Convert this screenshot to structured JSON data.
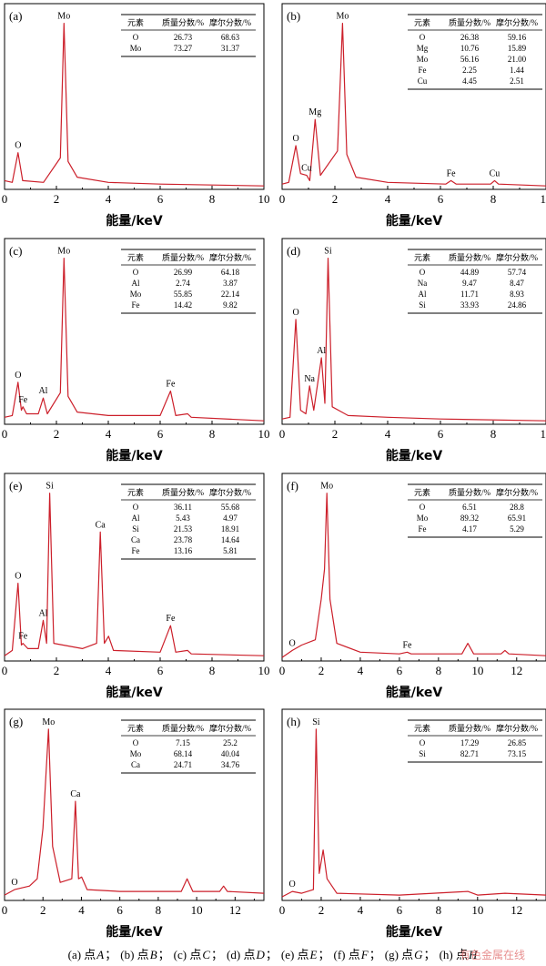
{
  "table_headers": [
    "元素",
    "质量分数/%",
    "摩尔分数/%"
  ],
  "chart_data": [
    {
      "type": "line",
      "panel": "(a)",
      "xlabel": "能量/keV",
      "xlim": [
        0,
        10
      ],
      "xticks": [
        "0",
        "2",
        "4",
        "6",
        "8",
        "10"
      ],
      "ylim": [
        0,
        100
      ],
      "series": [
        {
          "values": [
            [
              0,
              5
            ],
            [
              0.3,
              4
            ],
            [
              0.52,
              21
            ],
            [
              0.7,
              5
            ],
            [
              1.5,
              4
            ],
            [
              2.15,
              18
            ],
            [
              2.29,
              95
            ],
            [
              2.45,
              16
            ],
            [
              2.8,
              7
            ],
            [
              4,
              4
            ],
            [
              6,
              3
            ],
            [
              10,
              2
            ]
          ]
        }
      ],
      "peaks": [
        {
          "label": "O",
          "x": 0.52,
          "y": 21
        },
        {
          "label": "Mo",
          "x": 2.29,
          "y": 95
        }
      ],
      "table": {
        "rows": [
          [
            "O",
            "26.73",
            "68.63"
          ],
          [
            "Mo",
            "73.27",
            "31.37"
          ]
        ]
      }
    },
    {
      "type": "line",
      "panel": "(b)",
      "xlabel": "能量/keV",
      "xlim": [
        0,
        10
      ],
      "xticks": [
        "0",
        "2",
        "4",
        "6",
        "8",
        "10"
      ],
      "ylim": [
        0,
        100
      ],
      "series": [
        {
          "values": [
            [
              0,
              3
            ],
            [
              0.25,
              4
            ],
            [
              0.52,
              25
            ],
            [
              0.7,
              9
            ],
            [
              0.93,
              8
            ],
            [
              1.05,
              5
            ],
            [
              1.25,
              40
            ],
            [
              1.45,
              8
            ],
            [
              2.1,
              22
            ],
            [
              2.29,
              95
            ],
            [
              2.45,
              20
            ],
            [
              2.8,
              7
            ],
            [
              4,
              4
            ],
            [
              6.2,
              3
            ],
            [
              6.4,
              5
            ],
            [
              6.6,
              3
            ],
            [
              7.9,
              3
            ],
            [
              8.05,
              5
            ],
            [
              8.2,
              3
            ],
            [
              10,
              2
            ]
          ]
        }
      ],
      "peaks": [
        {
          "label": "O",
          "x": 0.52,
          "y": 25
        },
        {
          "label": "Cu",
          "x": 0.93,
          "y": 8
        },
        {
          "label": "Mg",
          "x": 1.25,
          "y": 40
        },
        {
          "label": "Mo",
          "x": 2.29,
          "y": 95
        },
        {
          "label": "Fe",
          "x": 6.4,
          "y": 5
        },
        {
          "label": "Cu",
          "x": 8.05,
          "y": 5
        }
      ],
      "table": {
        "rows": [
          [
            "O",
            "26.38",
            "59.16"
          ],
          [
            "Mg",
            "10.76",
            "15.89"
          ],
          [
            "Mo",
            "56.16",
            "21.00"
          ],
          [
            "Fe",
            "2.25",
            "1.44"
          ],
          [
            "Cu",
            "4.45",
            "2.51"
          ]
        ]
      }
    },
    {
      "type": "line",
      "panel": "(c)",
      "xlabel": "能量/keV",
      "xlim": [
        0,
        10
      ],
      "xticks": [
        "0",
        "2",
        "4",
        "6",
        "8",
        "10"
      ],
      "ylim": [
        0,
        100
      ],
      "series": [
        {
          "values": [
            [
              0,
              4
            ],
            [
              0.3,
              5
            ],
            [
              0.52,
              24
            ],
            [
              0.65,
              8
            ],
            [
              0.71,
              10
            ],
            [
              0.85,
              6
            ],
            [
              1.3,
              6
            ],
            [
              1.49,
              15
            ],
            [
              1.65,
              6
            ],
            [
              2.15,
              18
            ],
            [
              2.29,
              95
            ],
            [
              2.45,
              16
            ],
            [
              2.8,
              7
            ],
            [
              4,
              5
            ],
            [
              6.0,
              5
            ],
            [
              6.4,
              19
            ],
            [
              6.6,
              5
            ],
            [
              7.06,
              6
            ],
            [
              7.2,
              4
            ],
            [
              10,
              2
            ]
          ]
        }
      ],
      "peaks": [
        {
          "label": "O",
          "x": 0.52,
          "y": 24
        },
        {
          "label": "Fe",
          "x": 0.71,
          "y": 10
        },
        {
          "label": "Al",
          "x": 1.49,
          "y": 15
        },
        {
          "label": "Mo",
          "x": 2.29,
          "y": 95
        },
        {
          "label": "Fe",
          "x": 6.4,
          "y": 19
        }
      ],
      "table": {
        "rows": [
          [
            "O",
            "26.99",
            "64.18"
          ],
          [
            "Al",
            "2.74",
            "3.87"
          ],
          [
            "Mo",
            "55.85",
            "22.14"
          ],
          [
            "Fe",
            "14.42",
            "9.82"
          ]
        ]
      }
    },
    {
      "type": "line",
      "panel": "(d)",
      "xlabel": "能量/keV",
      "xlim": [
        0,
        10
      ],
      "xticks": [
        "0",
        "2",
        "4",
        "6",
        "8",
        "10"
      ],
      "ylim": [
        0,
        100
      ],
      "series": [
        {
          "values": [
            [
              0,
              3
            ],
            [
              0.3,
              4
            ],
            [
              0.52,
              60
            ],
            [
              0.7,
              8
            ],
            [
              0.9,
              6
            ],
            [
              1.04,
              22
            ],
            [
              1.2,
              8
            ],
            [
              1.49,
              38
            ],
            [
              1.62,
              12
            ],
            [
              1.74,
              95
            ],
            [
              1.9,
              10
            ],
            [
              2.5,
              5
            ],
            [
              4,
              4
            ],
            [
              6,
              3
            ],
            [
              10,
              2
            ]
          ]
        }
      ],
      "peaks": [
        {
          "label": "O",
          "x": 0.52,
          "y": 60
        },
        {
          "label": "Na",
          "x": 1.04,
          "y": 22
        },
        {
          "label": "Al",
          "x": 1.49,
          "y": 38
        },
        {
          "label": "Si",
          "x": 1.74,
          "y": 95
        }
      ],
      "table": {
        "rows": [
          [
            "O",
            "44.89",
            "57.74"
          ],
          [
            "Na",
            "9.47",
            "8.47"
          ],
          [
            "Al",
            "11.71",
            "8.93"
          ],
          [
            "Si",
            "33.93",
            "24.86"
          ]
        ]
      }
    },
    {
      "type": "line",
      "panel": "(e)",
      "xlabel": "能量/keV",
      "xlim": [
        0,
        10
      ],
      "xticks": [
        "0",
        "2",
        "4",
        "6",
        "8",
        "10"
      ],
      "ylim": [
        0,
        100
      ],
      "series": [
        {
          "values": [
            [
              0,
              3
            ],
            [
              0.3,
              6
            ],
            [
              0.52,
              44
            ],
            [
              0.65,
              9
            ],
            [
              0.71,
              10
            ],
            [
              0.9,
              7
            ],
            [
              1.3,
              7
            ],
            [
              1.49,
              23
            ],
            [
              1.62,
              10
            ],
            [
              1.74,
              95
            ],
            [
              1.9,
              10
            ],
            [
              3.0,
              7
            ],
            [
              3.55,
              10
            ],
            [
              3.69,
              73
            ],
            [
              3.85,
              10
            ],
            [
              4.01,
              14
            ],
            [
              4.2,
              6
            ],
            [
              6.0,
              5
            ],
            [
              6.4,
              20
            ],
            [
              6.6,
              5
            ],
            [
              7.06,
              6
            ],
            [
              7.2,
              4
            ],
            [
              10,
              3
            ]
          ]
        }
      ],
      "peaks": [
        {
          "label": "O",
          "x": 0.52,
          "y": 44
        },
        {
          "label": "Fe",
          "x": 0.71,
          "y": 10
        },
        {
          "label": "Al",
          "x": 1.49,
          "y": 23
        },
        {
          "label": "Si",
          "x": 1.74,
          "y": 95
        },
        {
          "label": "Ca",
          "x": 3.69,
          "y": 73
        },
        {
          "label": "Fe",
          "x": 6.4,
          "y": 20
        }
      ],
      "table": {
        "rows": [
          [
            "O",
            "36.11",
            "55.68"
          ],
          [
            "Al",
            "5.43",
            "4.97"
          ],
          [
            "Si",
            "21.53",
            "18.91"
          ],
          [
            "Ca",
            "23.78",
            "14.64"
          ],
          [
            "Fe",
            "13.16",
            "5.81"
          ]
        ]
      }
    },
    {
      "type": "line",
      "panel": "(f)",
      "xlabel": "能量/keV",
      "xlim": [
        0,
        13.5
      ],
      "xticks": [
        "0",
        "2",
        "4",
        "6",
        "8",
        "10",
        "12"
      ],
      "ylim": [
        0,
        100
      ],
      "series": [
        {
          "values": [
            [
              0,
              2
            ],
            [
              0.52,
              6
            ],
            [
              1.0,
              9
            ],
            [
              1.7,
              12
            ],
            [
              2.0,
              35
            ],
            [
              2.17,
              52
            ],
            [
              2.29,
              95
            ],
            [
              2.45,
              35
            ],
            [
              2.8,
              10
            ],
            [
              4,
              5
            ],
            [
              6.0,
              4
            ],
            [
              6.4,
              5
            ],
            [
              6.6,
              4
            ],
            [
              9.2,
              4
            ],
            [
              9.5,
              10
            ],
            [
              9.8,
              4
            ],
            [
              11.2,
              4
            ],
            [
              11.4,
              6
            ],
            [
              11.6,
              4
            ],
            [
              13.5,
              3
            ]
          ]
        }
      ],
      "peaks": [
        {
          "label": "O",
          "x": 0.52,
          "y": 6
        },
        {
          "label": "Mo",
          "x": 2.29,
          "y": 95
        },
        {
          "label": "Fe",
          "x": 6.4,
          "y": 5
        }
      ],
      "table": {
        "rows": [
          [
            "O",
            "6.51",
            "28.8"
          ],
          [
            "Mo",
            "89.32",
            "65.91"
          ],
          [
            "Fe",
            "4.17",
            "5.29"
          ]
        ]
      }
    },
    {
      "type": "line",
      "panel": "(g)",
      "xlabel": "能量/keV",
      "xlim": [
        0,
        13.5
      ],
      "xticks": [
        "0",
        "2",
        "4",
        "6",
        "8",
        "10",
        "12"
      ],
      "ylim": [
        0,
        100
      ],
      "series": [
        {
          "values": [
            [
              0,
              3
            ],
            [
              0.52,
              6
            ],
            [
              1.3,
              8
            ],
            [
              1.7,
              12
            ],
            [
              2.0,
              40
            ],
            [
              2.29,
              95
            ],
            [
              2.5,
              30
            ],
            [
              2.9,
              10
            ],
            [
              3.5,
              12
            ],
            [
              3.69,
              55
            ],
            [
              3.85,
              12
            ],
            [
              4.01,
              13
            ],
            [
              4.3,
              6
            ],
            [
              6,
              5
            ],
            [
              9.2,
              5
            ],
            [
              9.5,
              12
            ],
            [
              9.8,
              5
            ],
            [
              11.2,
              5
            ],
            [
              11.4,
              8
            ],
            [
              11.6,
              5
            ],
            [
              13.5,
              4
            ]
          ]
        }
      ],
      "peaks": [
        {
          "label": "O",
          "x": 0.52,
          "y": 6
        },
        {
          "label": "Mo",
          "x": 2.29,
          "y": 95
        },
        {
          "label": "Ca",
          "x": 3.69,
          "y": 55
        }
      ],
      "table": {
        "rows": [
          [
            "O",
            "7.15",
            "25.2"
          ],
          [
            "Mo",
            "68.14",
            "40.04"
          ],
          [
            "Ca",
            "24.71",
            "34.76"
          ]
        ]
      }
    },
    {
      "type": "line",
      "panel": "(h)",
      "xlabel": "能量/keV",
      "xlim": [
        0,
        13.5
      ],
      "xticks": [
        "0",
        "2",
        "4",
        "6",
        "8",
        "10",
        "12"
      ],
      "ylim": [
        0,
        100
      ],
      "series": [
        {
          "values": [
            [
              0,
              2
            ],
            [
              0.52,
              5
            ],
            [
              1.0,
              4
            ],
            [
              1.6,
              6
            ],
            [
              1.74,
              95
            ],
            [
              1.9,
              15
            ],
            [
              2.1,
              28
            ],
            [
              2.3,
              12
            ],
            [
              2.8,
              4
            ],
            [
              6,
              3
            ],
            [
              9.5,
              5
            ],
            [
              10,
              3
            ],
            [
              11.4,
              4
            ],
            [
              13.5,
              3
            ]
          ]
        }
      ],
      "peaks": [
        {
          "label": "O",
          "x": 0.52,
          "y": 5
        },
        {
          "label": "Si",
          "x": 1.74,
          "y": 95
        }
      ],
      "table": {
        "rows": [
          [
            "O",
            "17.29",
            "26.85"
          ],
          [
            "Si",
            "82.71",
            "73.15"
          ]
        ]
      }
    }
  ],
  "caption": [
    {
      "prefix": "(a) 点",
      "point": "A",
      "sep": "；"
    },
    {
      "prefix": "(b) 点",
      "point": "B",
      "sep": "；"
    },
    {
      "prefix": "(c) 点",
      "point": "C",
      "sep": "；"
    },
    {
      "prefix": "(d) 点",
      "point": "D",
      "sep": "；"
    },
    {
      "prefix": "(e) 点",
      "point": "E",
      "sep": "；"
    },
    {
      "prefix": "(f) 点",
      "point": "F",
      "sep": "；"
    },
    {
      "prefix": "(g) 点",
      "point": "G",
      "sep": "；"
    },
    {
      "prefix": "(h) 点",
      "point": "H",
      "sep": ""
    }
  ],
  "watermark": "有色金属在线",
  "colors": {
    "spectrum": "#cc1f2a",
    "frame": "#000000"
  }
}
